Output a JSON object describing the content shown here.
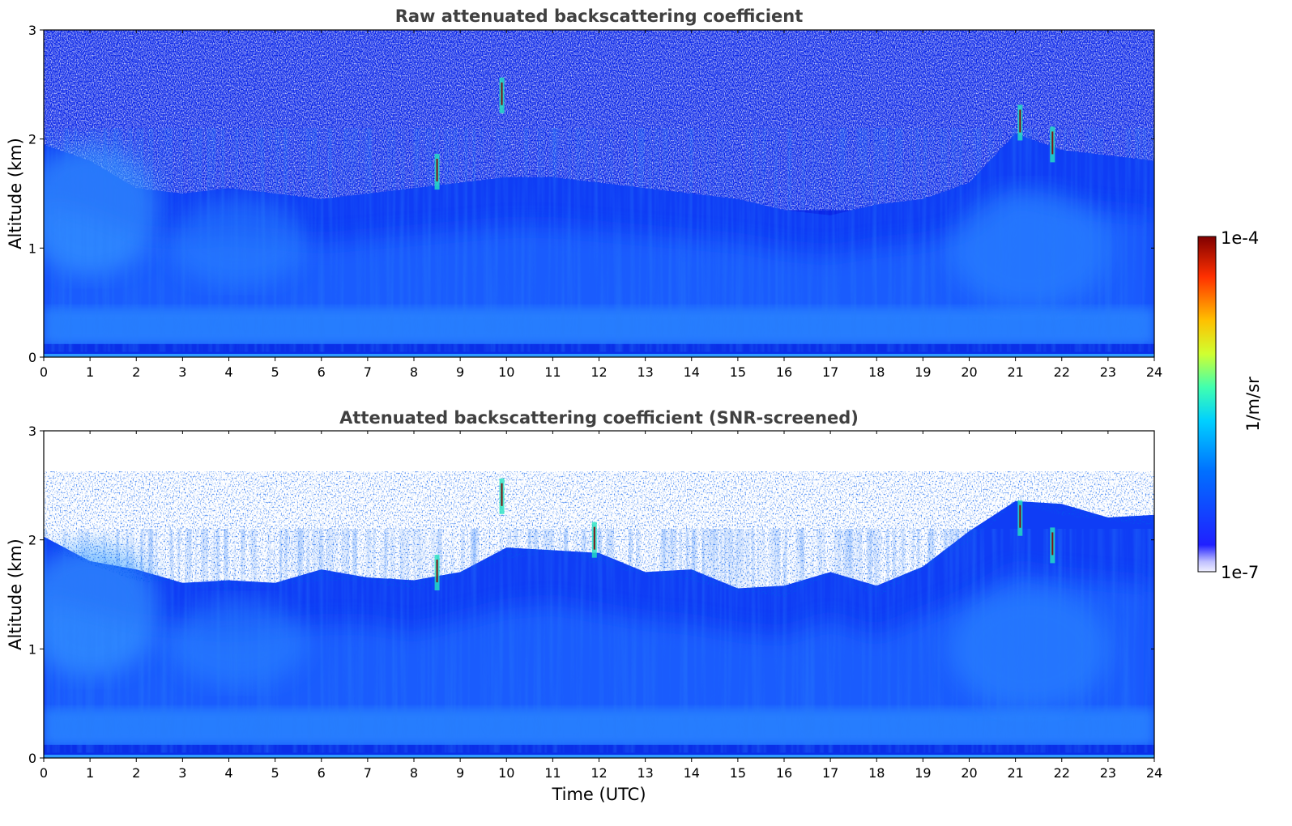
{
  "chart_data": [
    {
      "type": "heatmap",
      "title": "Raw attenuated backscattering coefficient",
      "xlabel": "",
      "ylabel": "Altitude (km)",
      "xlim": [
        0,
        24
      ],
      "ylim": [
        0,
        3
      ],
      "xticks": [
        "0",
        "1",
        "2",
        "3",
        "4",
        "5",
        "6",
        "7",
        "8",
        "9",
        "10",
        "11",
        "12",
        "13",
        "14",
        "15",
        "16",
        "17",
        "18",
        "19",
        "20",
        "21",
        "22",
        "23",
        "24"
      ],
      "yticks": [
        "0",
        "1",
        "2",
        "3"
      ],
      "boundary_layer_top_km": [
        [
          0,
          1.95
        ],
        [
          1,
          1.8
        ],
        [
          2,
          1.55
        ],
        [
          3,
          1.5
        ],
        [
          4,
          1.55
        ],
        [
          5,
          1.5
        ],
        [
          6,
          1.45
        ],
        [
          7,
          1.5
        ],
        [
          8,
          1.55
        ],
        [
          9,
          1.6
        ],
        [
          10,
          1.65
        ],
        [
          11,
          1.65
        ],
        [
          12,
          1.6
        ],
        [
          13,
          1.55
        ],
        [
          14,
          1.5
        ],
        [
          15,
          1.45
        ],
        [
          16,
          1.35
        ],
        [
          17,
          1.3
        ],
        [
          18,
          1.4
        ],
        [
          19,
          1.45
        ],
        [
          20,
          1.6
        ],
        [
          21,
          2.05
        ],
        [
          22,
          1.9
        ],
        [
          23,
          1.85
        ],
        [
          24,
          1.8
        ]
      ],
      "feature_spikes": [
        {
          "time_utc": 8.5,
          "altitude_km": 1.7,
          "level": "high"
        },
        {
          "time_utc": 9.9,
          "altitude_km": 2.4,
          "level": "high"
        },
        {
          "time_utc": 21.1,
          "altitude_km": 2.15,
          "level": "high"
        },
        {
          "time_utc": 21.8,
          "altitude_km": 1.95,
          "level": "high"
        }
      ],
      "screened": false
    },
    {
      "type": "heatmap",
      "title": "Attenuated backscattering coefficient (SNR-screened)",
      "xlabel": "Time (UTC)",
      "ylabel": "Altitude (km)",
      "xlim": [
        0,
        24
      ],
      "ylim": [
        0,
        3
      ],
      "xticks": [
        "0",
        "1",
        "2",
        "3",
        "4",
        "5",
        "6",
        "7",
        "8",
        "9",
        "10",
        "11",
        "12",
        "13",
        "14",
        "15",
        "16",
        "17",
        "18",
        "19",
        "20",
        "21",
        "22",
        "23",
        "24"
      ],
      "yticks": [
        "0",
        "1",
        "2",
        "3"
      ],
      "boundary_layer_top_km": [
        [
          0,
          2.0
        ],
        [
          1,
          1.85
        ],
        [
          2,
          1.7
        ],
        [
          3,
          1.65
        ],
        [
          4,
          1.6
        ],
        [
          5,
          1.65
        ],
        [
          6,
          1.7
        ],
        [
          7,
          1.7
        ],
        [
          8,
          1.6
        ],
        [
          9,
          1.75
        ],
        [
          10,
          1.9
        ],
        [
          11,
          1.95
        ],
        [
          12,
          1.85
        ],
        [
          13,
          1.75
        ],
        [
          14,
          1.7
        ],
        [
          15,
          1.6
        ],
        [
          16,
          1.55
        ],
        [
          17,
          1.75
        ],
        [
          18,
          1.55
        ],
        [
          19,
          1.8
        ],
        [
          20,
          2.05
        ],
        [
          21,
          2.4
        ],
        [
          22,
          2.3
        ],
        [
          23,
          2.25
        ],
        [
          24,
          2.2
        ]
      ],
      "feature_spikes": [
        {
          "time_utc": 8.5,
          "altitude_km": 1.7,
          "level": "high"
        },
        {
          "time_utc": 9.9,
          "altitude_km": 2.4,
          "level": "high"
        },
        {
          "time_utc": 11.9,
          "altitude_km": 2.0,
          "level": "high"
        },
        {
          "time_utc": 21.1,
          "altitude_km": 2.2,
          "level": "high"
        },
        {
          "time_utc": 21.8,
          "altitude_km": 1.95,
          "level": "high"
        }
      ],
      "screened": true
    }
  ],
  "colorbar": {
    "label": "1/m/sr",
    "min_label": "1e-7",
    "max_label": "1e-4",
    "colormap": "jet",
    "scale": "log",
    "low_color": "#ffffff",
    "palette": [
      "#e8e8ff",
      "#b8b8ff",
      "#0000ff",
      "#0066ff",
      "#00ccff",
      "#66ff99",
      "#ffff00",
      "#ff6600",
      "#cc0000",
      "#800000"
    ]
  },
  "colors": {
    "background_blue": "#1a5cff",
    "deep_blue": "#0b2fe0",
    "light_blue": "#3a9cff",
    "axis": "#000000",
    "title": "#404040"
  }
}
